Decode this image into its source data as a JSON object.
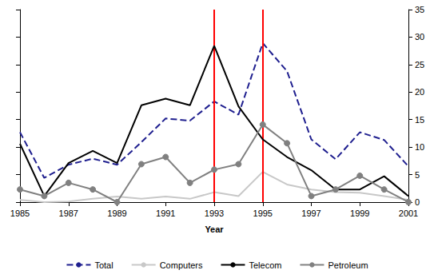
{
  "chart_data": {
    "type": "line",
    "x_label": "Year",
    "x": [
      1985,
      1986,
      1987,
      1988,
      1989,
      1990,
      1991,
      1992,
      1993,
      1994,
      1995,
      1996,
      1997,
      1998,
      1999,
      2000,
      2001
    ],
    "xlim": [
      1985,
      2001
    ],
    "xticks": [
      1985,
      1987,
      1989,
      1991,
      1993,
      1995,
      1997,
      1999,
      2001
    ],
    "ylim": [
      0,
      35
    ],
    "yticks": [
      0,
      5,
      10,
      15,
      20,
      25,
      30,
      35
    ],
    "grid": false,
    "legend": "bottom",
    "reference_lines": {
      "x": [
        1993,
        1995
      ],
      "color": "#ff0000"
    },
    "series": [
      {
        "name": "Total",
        "color": "#1f1f8f",
        "line_style": "dashed",
        "values": [
          12.7,
          4.4,
          6.8,
          7.9,
          6.8,
          10.9,
          15.2,
          14.8,
          18.3,
          15.9,
          28.9,
          23.8,
          11.4,
          7.8,
          12.7,
          11.3,
          6.5
        ]
      },
      {
        "name": "Computers",
        "color": "#c8c8c8",
        "line_style": "solid",
        "values": [
          0.4,
          0,
          0.1,
          0.6,
          1.0,
          0.6,
          1.0,
          0.6,
          1.8,
          1.1,
          5.5,
          3.2,
          2.3,
          1.8,
          1.7,
          1.1,
          0.4
        ]
      },
      {
        "name": "Telecom",
        "color": "#000000",
        "line_style": "solid",
        "values": [
          10.6,
          1.1,
          7.1,
          9.3,
          7.1,
          17.6,
          18.8,
          17.6,
          28.4,
          17.4,
          11.4,
          8.2,
          5.8,
          2.3,
          2.3,
          4.7,
          1.1
        ]
      },
      {
        "name": "Petroleum",
        "color": "#808080",
        "line_style": "solid",
        "marker": "circle",
        "values": [
          2.3,
          1.1,
          3.5,
          2.3,
          0,
          6.9,
          8.2,
          3.5,
          5.9,
          6.9,
          14.1,
          10.7,
          1.1,
          2.3,
          4.8,
          2.3,
          0
        ]
      }
    ]
  }
}
